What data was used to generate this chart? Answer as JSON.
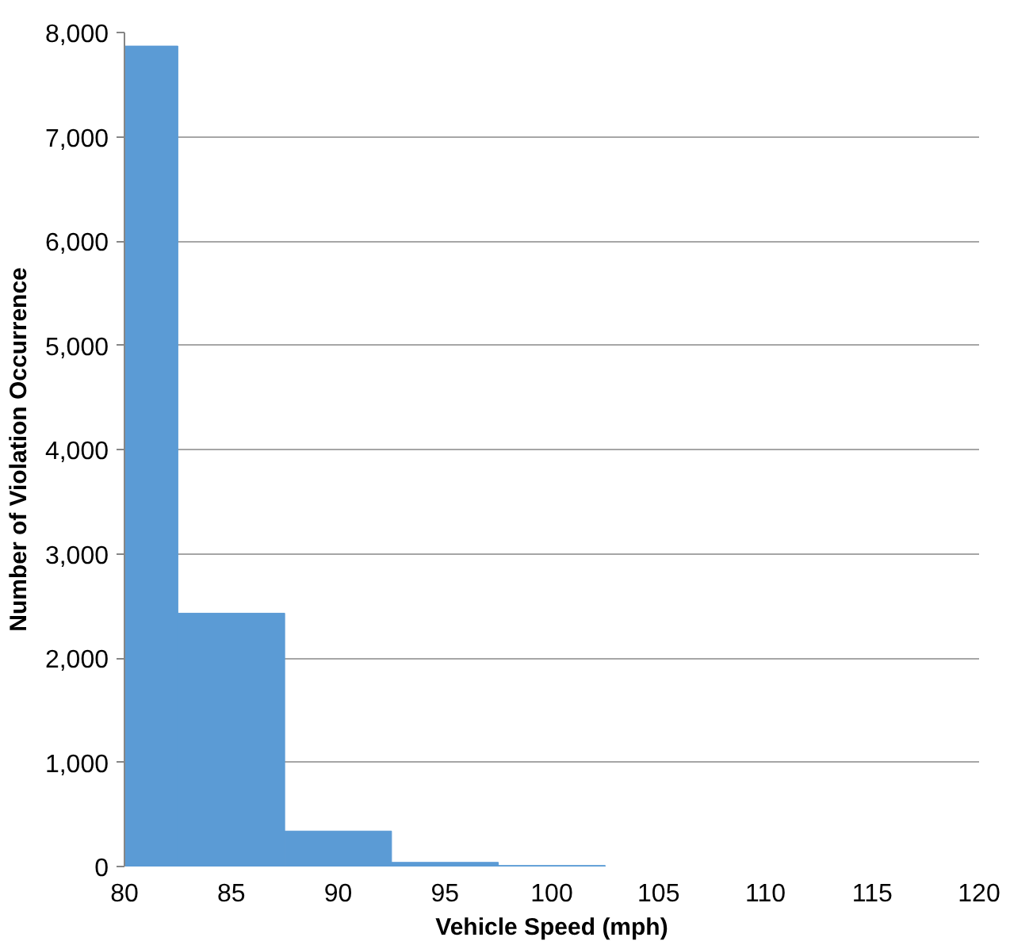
{
  "chart_data": {
    "type": "histogram",
    "xlabel": "Vehicle Speed (mph)",
    "ylabel": "Number of Violation Occurrence",
    "bins": [
      80,
      82.5,
      87.5,
      92.5,
      97.5,
      102.5
    ],
    "values": [
      7870,
      2430,
      340,
      40,
      10
    ],
    "color": "#5b9bd5",
    "xlim": [
      80,
      120
    ],
    "xticks": [
      80,
      85,
      90,
      95,
      100,
      105,
      110,
      115,
      120
    ],
    "ylim": [
      0,
      8000
    ],
    "yticks": [
      {
        "value": 0,
        "label": "0"
      },
      {
        "value": 1000,
        "label": "1,000"
      },
      {
        "value": 2000,
        "label": "2,000"
      },
      {
        "value": 3000,
        "label": "3,000"
      },
      {
        "value": 4000,
        "label": "4,000"
      },
      {
        "value": 5000,
        "label": "5,000"
      },
      {
        "value": 6000,
        "label": "6,000"
      },
      {
        "value": 7000,
        "label": "7,000"
      },
      {
        "value": 8000,
        "label": "8,000"
      }
    ],
    "grid": "y"
  }
}
